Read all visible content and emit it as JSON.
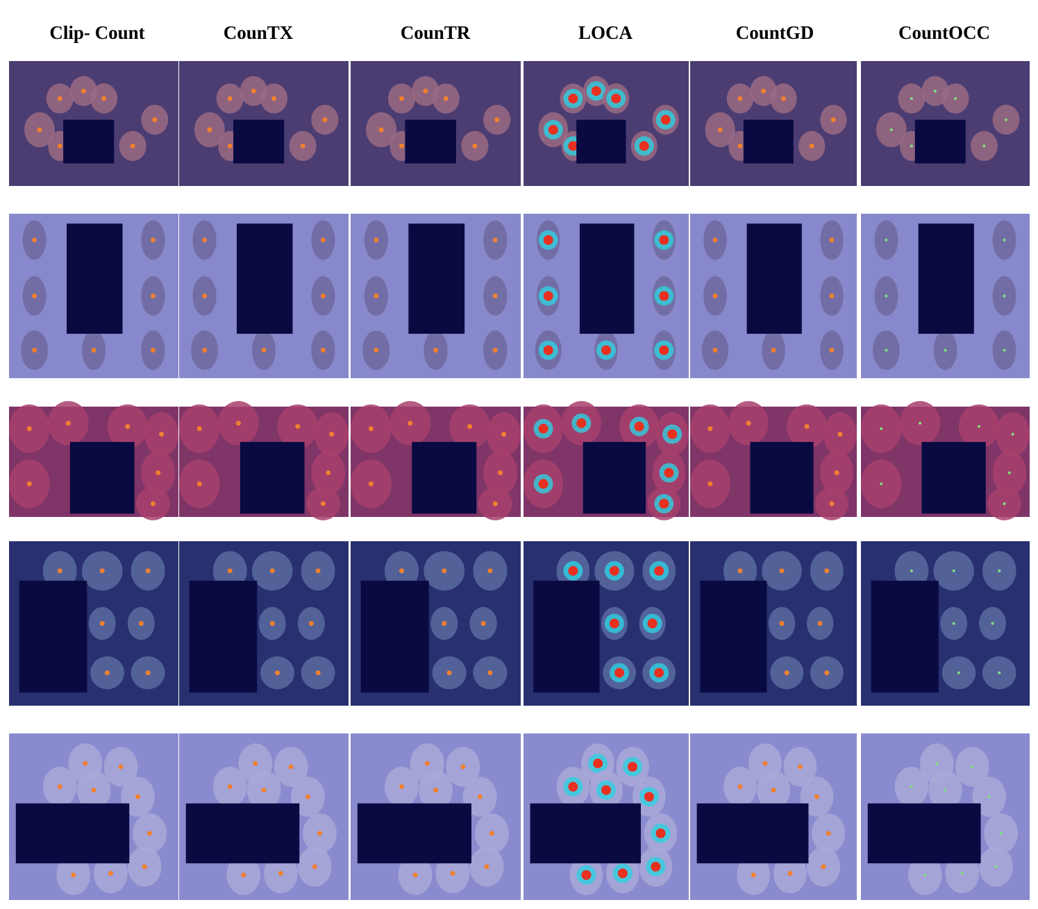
{
  "headers": [
    "Clip- Count",
    "CounTX",
    "CounTR",
    "LOCA",
    "CountGD",
    "CountOCC"
  ]
}
